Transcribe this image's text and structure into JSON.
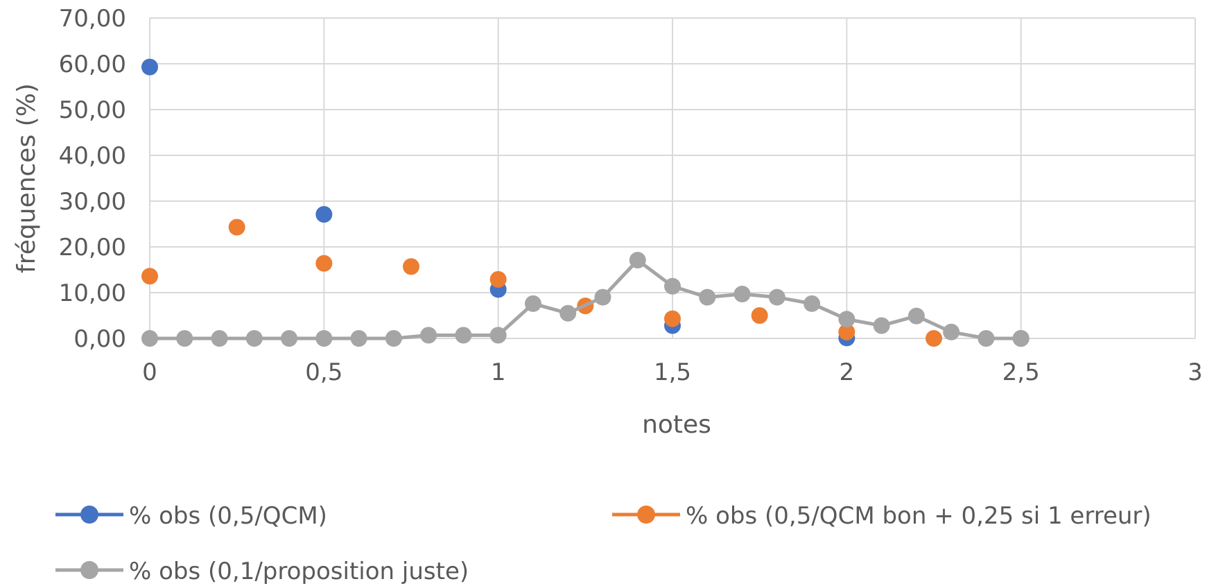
{
  "chart_data": {
    "type": "scatter",
    "xlabel": "notes",
    "ylabel": "fréquences (%)",
    "xlim": [
      0,
      3
    ],
    "ylim": [
      0,
      70
    ],
    "x_ticks": [
      "0",
      "0,5",
      "1",
      "1,5",
      "2",
      "2,5",
      "3"
    ],
    "y_ticks": [
      "0,00",
      "10,00",
      "20,00",
      "30,00",
      "40,00",
      "50,00",
      "60,00",
      "70,00"
    ],
    "grid": true,
    "legend_position": "bottom",
    "series": [
      {
        "name": "% obs (0,5/QCM)",
        "color": "#4472C4",
        "connected": false,
        "x": [
          0,
          0.5,
          1,
          1.5,
          2,
          2.5
        ],
        "y": [
          59.3,
          27.1,
          10.7,
          2.8,
          0.1,
          0.0
        ]
      },
      {
        "name": "% obs (0,5/QCM bon + 0,25 si 1 erreur)",
        "color": "#ED7D31",
        "connected": false,
        "x": [
          0,
          0.25,
          0.5,
          0.75,
          1,
          1.25,
          1.5,
          1.75,
          2,
          2.25,
          2.5
        ],
        "y": [
          13.6,
          24.3,
          16.4,
          15.7,
          12.9,
          7.1,
          4.3,
          5.0,
          1.4,
          0.0,
          0.0
        ]
      },
      {
        "name": "% obs (0,1/proposition juste)",
        "color": "#A5A5A5",
        "connected": true,
        "x": [
          0,
          0.1,
          0.2,
          0.3,
          0.4,
          0.5,
          0.6,
          0.7,
          0.8,
          0.9,
          1.0,
          1.1,
          1.2,
          1.3,
          1.4,
          1.5,
          1.6,
          1.7,
          1.8,
          1.9,
          2.0,
          2.1,
          2.2,
          2.3,
          2.4,
          2.5
        ],
        "y": [
          0.0,
          0.0,
          0.0,
          0.0,
          0.0,
          0.0,
          0.0,
          0.0,
          0.7,
          0.7,
          0.7,
          7.6,
          5.5,
          9.0,
          17.1,
          11.4,
          9.0,
          9.7,
          9.0,
          7.6,
          4.2,
          2.8,
          4.9,
          1.4,
          0.0,
          0.0
        ]
      }
    ]
  }
}
